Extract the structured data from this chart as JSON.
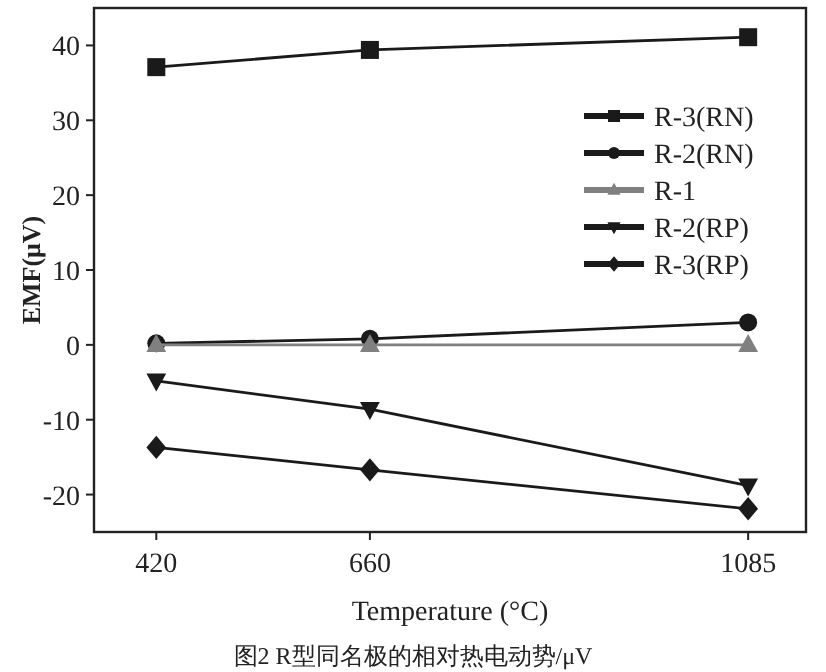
{
  "chart_data": {
    "type": "line",
    "xlabel": "Temperature (°C)",
    "ylabel": "EMF(μV)",
    "x": [
      420,
      660,
      1085
    ],
    "xlim": [
      350,
      1150
    ],
    "xticks": [
      420,
      660,
      1085
    ],
    "ylim": [
      -25,
      45
    ],
    "yticks": [
      -20,
      -10,
      0,
      10,
      20,
      30,
      40
    ],
    "series": [
      {
        "name": "R-3(RN)",
        "color": "#1a1a1a",
        "marker": "square",
        "values": [
          37.1,
          39.4,
          41.1
        ]
      },
      {
        "name": "R-2(RN)",
        "color": "#1a1a1a",
        "marker": "circle",
        "values": [
          0.2,
          0.8,
          3.0
        ]
      },
      {
        "name": "R-1",
        "color": "#808080",
        "marker": "triangle",
        "values": [
          0,
          0,
          0
        ]
      },
      {
        "name": "R-2(RP)",
        "color": "#1a1a1a",
        "marker": "triangle_down",
        "values": [
          -4.8,
          -8.6,
          -18.8
        ]
      },
      {
        "name": "R-3(RP)",
        "color": "#1a1a1a",
        "marker": "diamond",
        "values": [
          -13.7,
          -16.7,
          -21.9
        ]
      }
    ],
    "legend": "right",
    "grid": false,
    "line_style": "solid",
    "annotations": [
      "图2  R型同名极的相对热电动势/μV"
    ]
  }
}
